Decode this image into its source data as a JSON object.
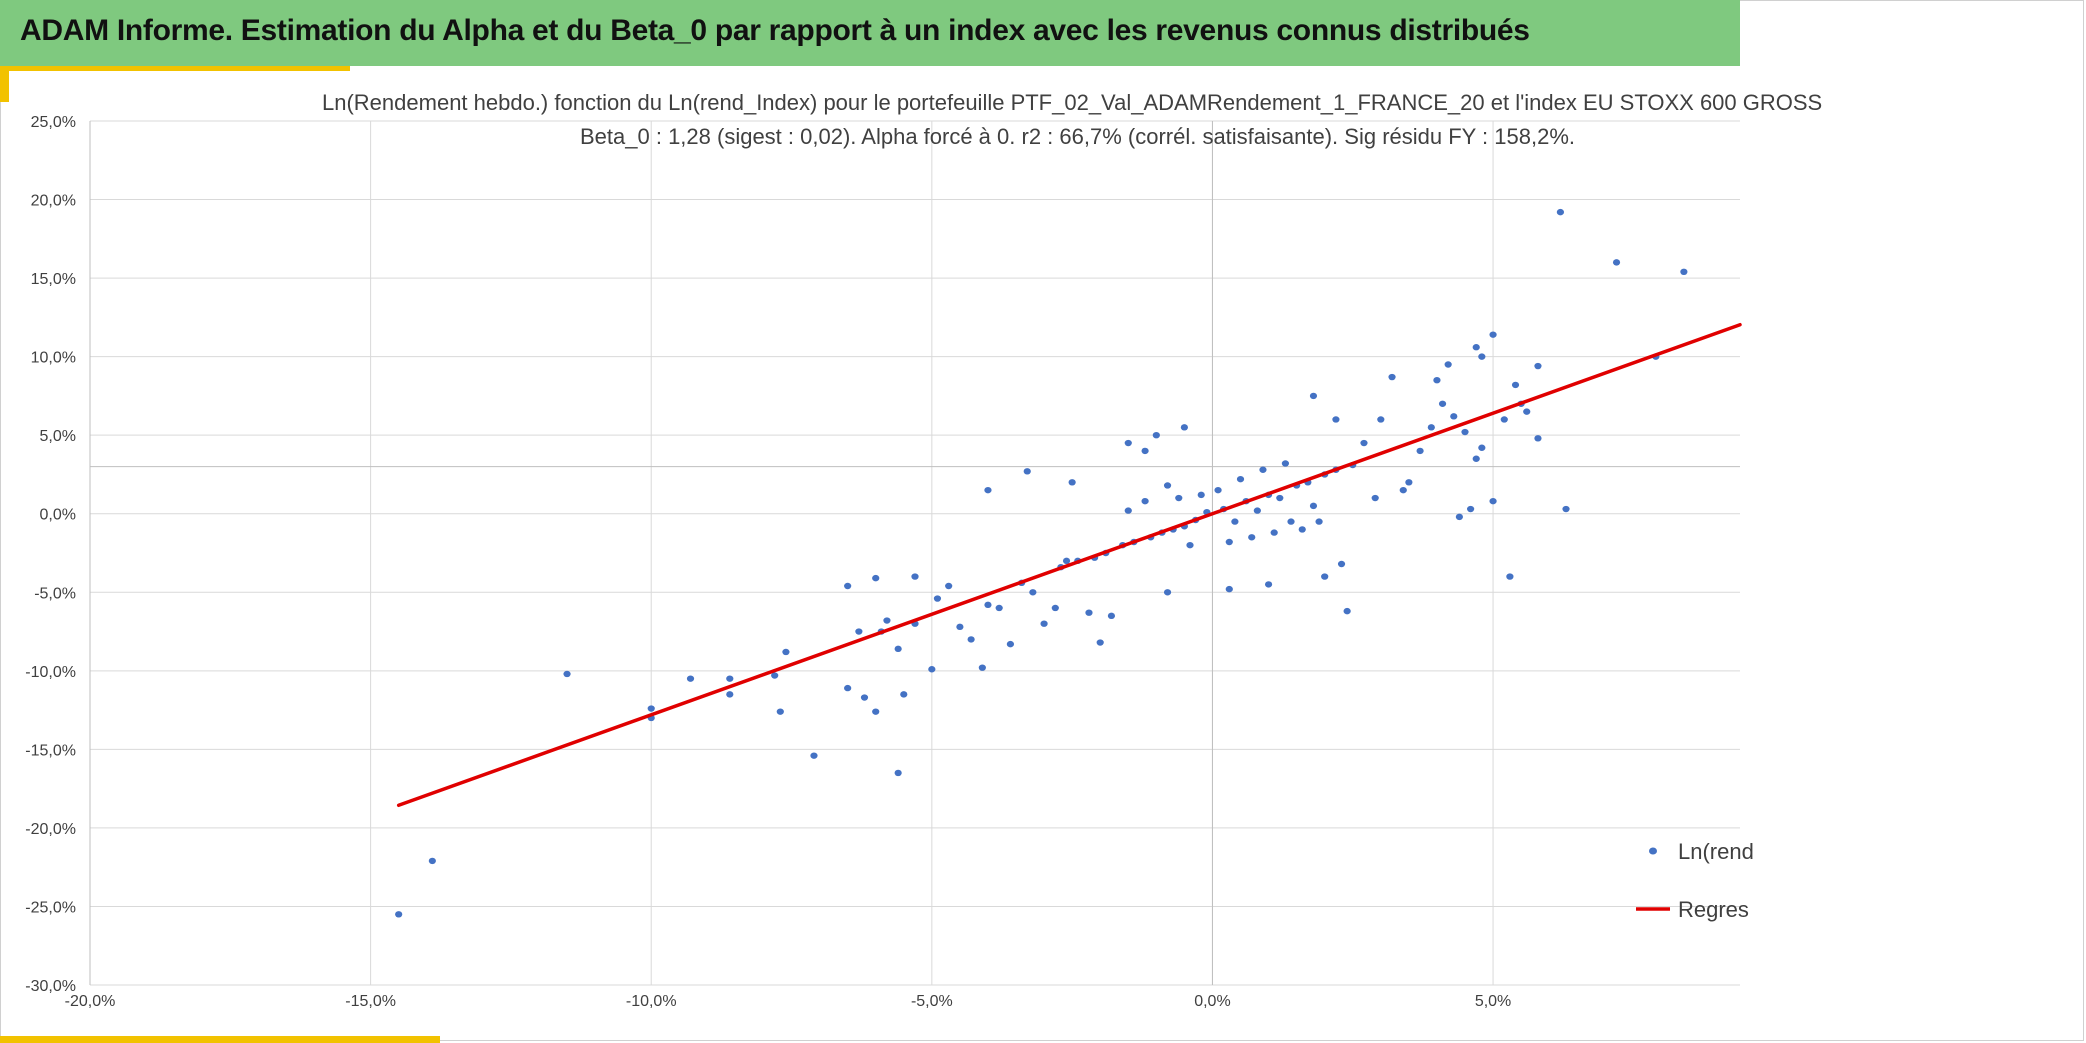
{
  "header": {
    "title": "ADAM Informe. Estimation du Alpha et du Beta_0 par rapport à un index avec les revenus connus distribués"
  },
  "colors": {
    "header_bg": "#7fc97f",
    "accent": "#f2c200",
    "points": "#4472c4",
    "regression": "#e00000",
    "grid": "#d9d9d9"
  },
  "chart_data": {
    "type": "scatter",
    "title": "Ln(Rendement hebdo.) fonction du Ln(rend_Index) pour le portefeuille PTF_02_Val_ADAMRendement_1_FRANCE_20 et l'index EU STOXX 600 GROSS",
    "subtitle": "Beta_0 : 1,28 (sigest : 0,02). Alpha forcé à 0. r2 : 66,7% (corrél. satisfaisante). Sig résidu FY : 158,2%.",
    "xlabel": "",
    "ylabel": "",
    "xlim": [
      -0.2,
      0.094
    ],
    "ylim": [
      -0.3,
      0.25
    ],
    "x_ticks": [
      -0.2,
      -0.15,
      -0.1,
      -0.05,
      0.0,
      0.05
    ],
    "x_tick_labels": [
      "-20,0%",
      "-15,0%",
      "-10,0%",
      "-5,0%",
      "0,0%",
      "5,0%"
    ],
    "y_ticks": [
      0.25,
      0.2,
      0.15,
      0.1,
      0.05,
      0.0,
      -0.05,
      -0.1,
      -0.15,
      -0.2,
      -0.25,
      -0.3
    ],
    "y_tick_labels": [
      "25,0%",
      "20,0%",
      "15,0%",
      "10,0%",
      "5,0%",
      "0,0%",
      "-5,0%",
      "-10,0%",
      "-15,0%",
      "-20,0%",
      "-25,0%",
      "-30,0%"
    ],
    "grid": true,
    "legend_position": "right",
    "series": [
      {
        "name": "Ln(rend",
        "kind": "scatter",
        "points": [
          [
            -0.145,
            -0.255
          ],
          [
            -0.139,
            -0.221
          ],
          [
            -0.115,
            -0.102
          ],
          [
            -0.1,
            -0.13
          ],
          [
            -0.1,
            -0.124
          ],
          [
            -0.093,
            -0.105
          ],
          [
            -0.086,
            -0.105
          ],
          [
            -0.086,
            -0.115
          ],
          [
            -0.078,
            -0.103
          ],
          [
            -0.077,
            -0.126
          ],
          [
            -0.076,
            -0.088
          ],
          [
            -0.071,
            -0.154
          ],
          [
            -0.065,
            -0.111
          ],
          [
            -0.062,
            -0.117
          ],
          [
            -0.06,
            -0.126
          ],
          [
            -0.056,
            -0.165
          ],
          [
            -0.055,
            -0.115
          ],
          [
            -0.065,
            -0.046
          ],
          [
            -0.06,
            -0.041
          ],
          [
            -0.053,
            -0.04
          ],
          [
            -0.063,
            -0.075
          ],
          [
            -0.059,
            -0.075
          ],
          [
            -0.058,
            -0.068
          ],
          [
            -0.056,
            -0.086
          ],
          [
            -0.053,
            -0.07
          ],
          [
            -0.05,
            -0.099
          ],
          [
            -0.049,
            -0.054
          ],
          [
            -0.047,
            -0.046
          ],
          [
            -0.045,
            -0.072
          ],
          [
            -0.043,
            -0.08
          ],
          [
            -0.041,
            -0.098
          ],
          [
            -0.04,
            -0.058
          ],
          [
            -0.038,
            -0.06
          ],
          [
            -0.036,
            -0.083
          ],
          [
            -0.034,
            -0.044
          ],
          [
            -0.032,
            -0.05
          ],
          [
            -0.03,
            -0.07
          ],
          [
            -0.04,
            0.015
          ],
          [
            -0.033,
            0.027
          ],
          [
            -0.028,
            -0.06
          ],
          [
            -0.026,
            -0.03
          ],
          [
            -0.025,
            0.02
          ],
          [
            -0.022,
            -0.063
          ],
          [
            -0.02,
            -0.082
          ],
          [
            -0.018,
            -0.065
          ],
          [
            -0.015,
            0.045
          ],
          [
            -0.012,
            0.04
          ],
          [
            -0.01,
            0.05
          ],
          [
            -0.008,
            -0.05
          ],
          [
            -0.005,
            0.055
          ],
          [
            0.003,
            -0.048
          ],
          [
            0.01,
            -0.045
          ],
          [
            0.018,
            0.075
          ],
          [
            0.02,
            -0.04
          ],
          [
            0.022,
            0.06
          ],
          [
            0.023,
            -0.032
          ],
          [
            0.024,
            -0.062
          ],
          [
            0.03,
            0.06
          ],
          [
            0.032,
            0.087
          ],
          [
            0.035,
            0.02
          ],
          [
            0.037,
            0.04
          ],
          [
            0.039,
            0.055
          ],
          [
            0.04,
            0.085
          ],
          [
            0.041,
            0.07
          ],
          [
            0.042,
            0.095
          ],
          [
            0.043,
            0.062
          ],
          [
            0.045,
            0.052
          ],
          [
            0.047,
            0.035
          ],
          [
            0.048,
            0.042
          ],
          [
            0.047,
            0.106
          ],
          [
            0.048,
            0.1
          ],
          [
            0.05,
            0.114
          ],
          [
            0.052,
            0.06
          ],
          [
            0.054,
            0.082
          ],
          [
            0.055,
            0.07
          ],
          [
            0.056,
            0.065
          ],
          [
            0.058,
            0.094
          ],
          [
            0.058,
            0.048
          ],
          [
            0.05,
            0.008
          ],
          [
            0.046,
            0.003
          ],
          [
            0.053,
            -0.04
          ],
          [
            0.062,
            0.192
          ],
          [
            0.063,
            0.003
          ],
          [
            0.072,
            0.16
          ],
          [
            0.079,
            0.1
          ],
          [
            0.084,
            0.154
          ],
          [
            0.044,
            -0.002
          ],
          [
            0.034,
            0.015
          ],
          [
            0.029,
            0.01
          ],
          [
            0.027,
            0.045
          ],
          [
            -0.001,
            0.001
          ],
          [
            0.002,
            0.003
          ],
          [
            0.004,
            -0.005
          ],
          [
            0.006,
            0.008
          ],
          [
            0.008,
            0.002
          ],
          [
            0.01,
            0.012
          ],
          [
            0.012,
            0.01
          ],
          [
            0.015,
            0.018
          ],
          [
            0.017,
            0.02
          ],
          [
            0.02,
            0.025
          ],
          [
            0.022,
            0.028
          ],
          [
            0.025,
            0.031
          ],
          [
            -0.003,
            -0.004
          ],
          [
            -0.005,
            -0.008
          ],
          [
            -0.007,
            -0.01
          ],
          [
            -0.009,
            -0.012
          ],
          [
            -0.011,
            -0.015
          ],
          [
            -0.014,
            -0.018
          ],
          [
            -0.016,
            -0.02
          ],
          [
            -0.019,
            -0.025
          ],
          [
            -0.021,
            -0.028
          ],
          [
            -0.024,
            -0.03
          ],
          [
            -0.027,
            -0.034
          ],
          [
            0.001,
            0.015
          ],
          [
            0.005,
            0.022
          ],
          [
            0.009,
            0.028
          ],
          [
            0.013,
            0.032
          ],
          [
            0.016,
            -0.01
          ],
          [
            0.019,
            -0.005
          ],
          [
            -0.002,
            0.012
          ],
          [
            -0.006,
            0.01
          ],
          [
            -0.008,
            0.018
          ],
          [
            -0.012,
            0.008
          ],
          [
            -0.015,
            0.002
          ],
          [
            -0.004,
            -0.02
          ],
          [
            0.003,
            -0.018
          ],
          [
            0.007,
            -0.015
          ],
          [
            0.011,
            -0.012
          ],
          [
            0.014,
            -0.005
          ],
          [
            0.018,
            0.005
          ]
        ]
      },
      {
        "name": "Regres",
        "kind": "line",
        "beta": 1.28,
        "x_range": [
          -0.145,
          0.094
        ]
      }
    ]
  }
}
